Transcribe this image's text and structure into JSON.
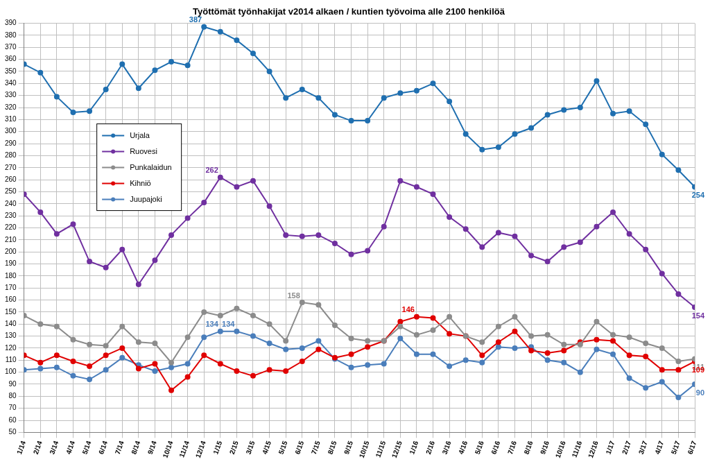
{
  "chart_data": {
    "type": "line",
    "title": "Työttömät työnhakijat v2014 alkaen / kuntien työvoima alle 2100 henkilöä",
    "categories": [
      "1/14",
      "2/14",
      "3/14",
      "4/14",
      "5/14",
      "6/14",
      "7/14",
      "8/14",
      "9/14",
      "10/14",
      "11/14",
      "12/14",
      "1/15",
      "2/15",
      "3/15",
      "4/15",
      "5/15",
      "6/15",
      "7/15",
      "8/15",
      "9/15",
      "10/15",
      "11/15",
      "12/15",
      "1/16",
      "2/16",
      "3/16",
      "4/16",
      "5/16",
      "6/16",
      "7/16",
      "8/16",
      "9/16",
      "10/16",
      "11/16",
      "12/16",
      "1/17",
      "2/17",
      "3/17",
      "4/17",
      "5/17",
      "6/17"
    ],
    "series": [
      {
        "name": "Urjala",
        "color": "#1f6fb0",
        "marker": "circle",
        "values": [
          356,
          349,
          329,
          316,
          317,
          335,
          356,
          336,
          351,
          358,
          355,
          387,
          383,
          376,
          365,
          350,
          328,
          335,
          328,
          314,
          309,
          309,
          328,
          332,
          334,
          340,
          325,
          298,
          285,
          287,
          298,
          303,
          314,
          318,
          320,
          342,
          315,
          317,
          306,
          281,
          268,
          254
        ],
        "value_labels": [
          null,
          null,
          null,
          null,
          null,
          null,
          null,
          null,
          null,
          null,
          null,
          "387",
          null,
          null,
          null,
          null,
          null,
          null,
          null,
          null,
          null,
          null,
          null,
          null,
          null,
          null,
          null,
          null,
          null,
          null,
          null,
          null,
          null,
          null,
          null,
          null,
          null,
          null,
          null,
          null,
          null,
          "254"
        ]
      },
      {
        "name": "Ruovesi",
        "color": "#7030a0",
        "marker": "circle",
        "values": [
          248,
          233,
          215,
          223,
          192,
          187,
          202,
          173,
          193,
          214,
          228,
          241,
          262,
          254,
          259,
          238,
          214,
          213,
          214,
          207,
          198,
          201,
          221,
          259,
          254,
          248,
          229,
          219,
          204,
          216,
          213,
          197,
          192,
          204,
          208,
          221,
          233,
          215,
          202,
          182,
          165,
          154
        ],
        "value_labels": [
          null,
          null,
          null,
          null,
          null,
          null,
          null,
          null,
          null,
          null,
          null,
          null,
          "262",
          null,
          null,
          null,
          null,
          null,
          null,
          null,
          null,
          null,
          null,
          null,
          null,
          null,
          null,
          null,
          null,
          null,
          null,
          null,
          null,
          null,
          null,
          null,
          null,
          null,
          null,
          null,
          null,
          "154"
        ]
      },
      {
        "name": "Punkalaidun",
        "color": "#8c8c8c",
        "marker": "circle",
        "values": [
          147,
          140,
          138,
          127,
          123,
          122,
          138,
          125,
          124,
          108,
          129,
          150,
          147,
          153,
          147,
          140,
          126,
          158,
          156,
          139,
          128,
          126,
          126,
          138,
          131,
          135,
          146,
          130,
          125,
          138,
          146,
          130,
          131,
          123,
          123,
          142,
          131,
          129,
          124,
          120,
          109,
          111
        ],
        "value_labels": [
          null,
          null,
          null,
          null,
          null,
          null,
          null,
          null,
          null,
          null,
          null,
          null,
          null,
          null,
          null,
          null,
          null,
          "158",
          null,
          null,
          null,
          null,
          null,
          null,
          null,
          null,
          null,
          null,
          null,
          null,
          null,
          null,
          null,
          null,
          null,
          null,
          null,
          null,
          null,
          null,
          null,
          "111"
        ]
      },
      {
        "name": "Kihniö",
        "color": "#e00000",
        "marker": "circle",
        "values": [
          114,
          108,
          114,
          109,
          105,
          114,
          120,
          103,
          107,
          85,
          96,
          114,
          107,
          101,
          97,
          102,
          101,
          109,
          119,
          112,
          115,
          121,
          126,
          142,
          146,
          145,
          132,
          130,
          114,
          125,
          134,
          118,
          116,
          118,
          125,
          127,
          126,
          114,
          113,
          102,
          102,
          109
        ],
        "value_labels": [
          null,
          null,
          null,
          null,
          null,
          null,
          null,
          null,
          null,
          null,
          null,
          null,
          null,
          null,
          null,
          null,
          null,
          null,
          null,
          null,
          null,
          null,
          null,
          null,
          "146",
          null,
          null,
          null,
          null,
          null,
          null,
          null,
          null,
          null,
          null,
          null,
          null,
          null,
          null,
          null,
          null,
          "109"
        ]
      },
      {
        "name": "Juupajoki",
        "color": "#4a7ebb",
        "marker": "circle",
        "values": [
          102,
          103,
          104,
          97,
          94,
          102,
          112,
          106,
          101,
          104,
          107,
          129,
          134,
          134,
          130,
          124,
          119,
          120,
          126,
          111,
          104,
          106,
          107,
          128,
          115,
          115,
          105,
          110,
          108,
          121,
          120,
          121,
          110,
          108,
          100,
          119,
          115,
          95,
          87,
          92,
          79,
          90
        ],
        "value_labels": [
          null,
          null,
          null,
          null,
          null,
          null,
          null,
          null,
          null,
          null,
          null,
          null,
          "134",
          "134",
          null,
          null,
          null,
          null,
          null,
          null,
          null,
          null,
          null,
          null,
          null,
          null,
          null,
          null,
          null,
          null,
          null,
          null,
          null,
          null,
          null,
          null,
          null,
          null,
          null,
          null,
          null,
          "90"
        ]
      }
    ],
    "ylim": [
      50,
      390
    ],
    "yticks": [
      50,
      60,
      70,
      80,
      90,
      100,
      110,
      120,
      130,
      140,
      150,
      160,
      170,
      180,
      190,
      200,
      210,
      220,
      230,
      240,
      250,
      260,
      270,
      280,
      290,
      300,
      310,
      320,
      330,
      340,
      350,
      360,
      370,
      380,
      390
    ],
    "grid": true,
    "legend": "upper left"
  }
}
